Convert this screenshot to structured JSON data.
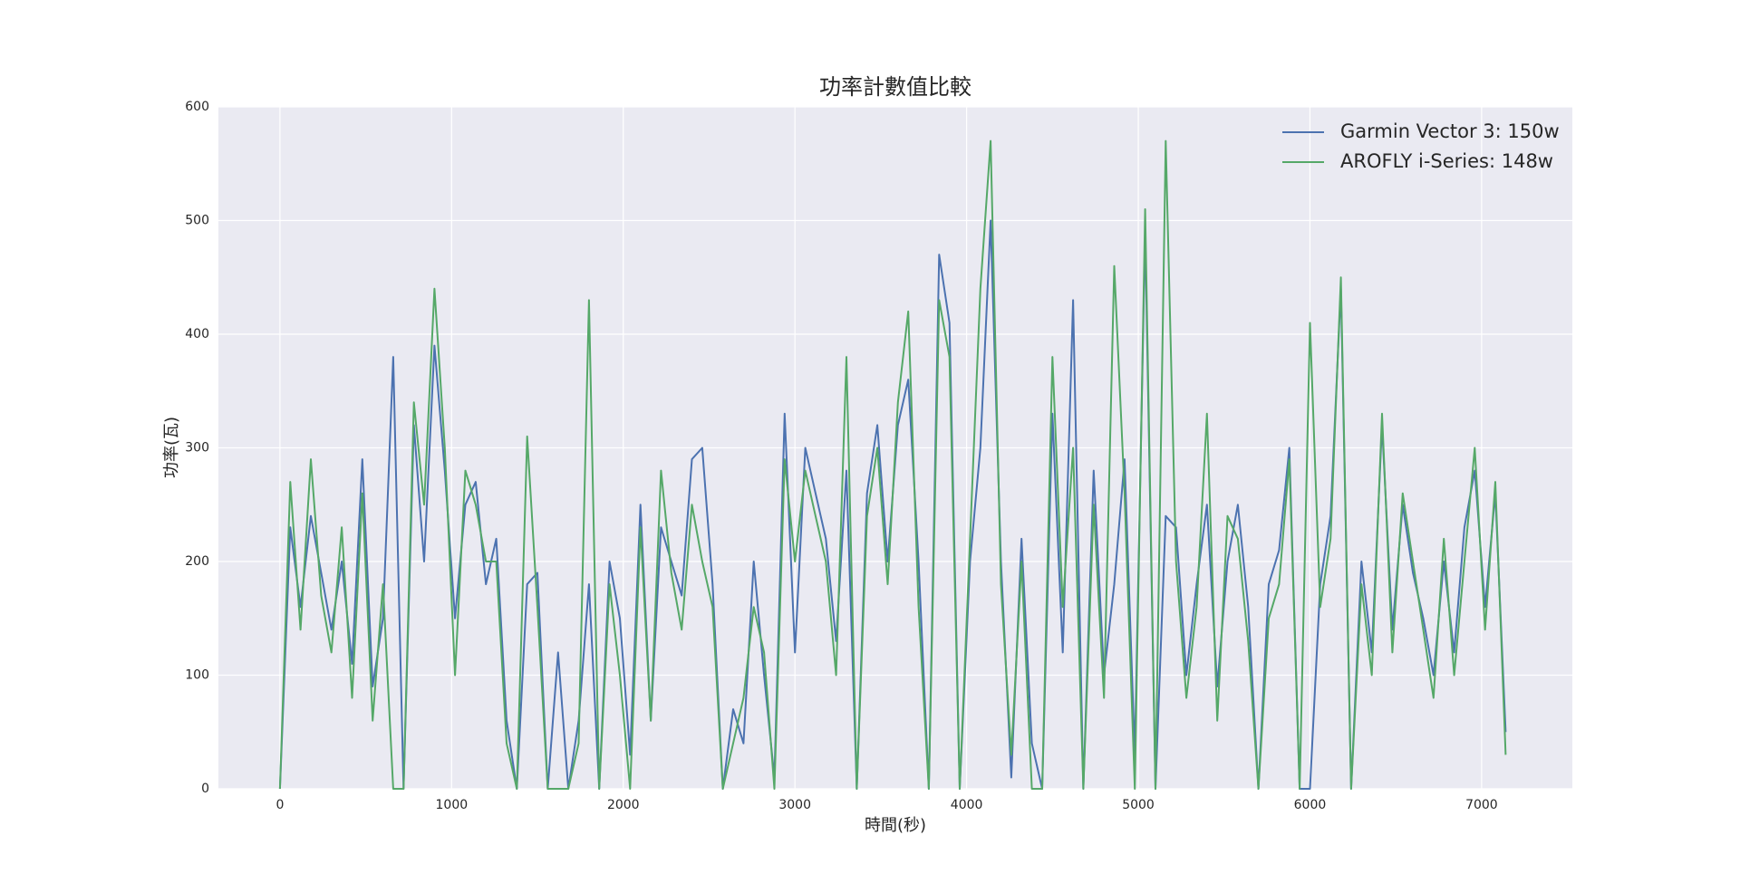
{
  "chart_data": {
    "type": "line",
    "title": "功率計數值比較",
    "x_label": "時間(秒)",
    "y_label": "功率(瓦)",
    "x": [
      0,
      60,
      120,
      180,
      240,
      300,
      360,
      420,
      480,
      540,
      600,
      660,
      720,
      780,
      840,
      900,
      960,
      1020,
      1080,
      1140,
      1200,
      1260,
      1320,
      1380,
      1440,
      1500,
      1560,
      1620,
      1680,
      1740,
      1800,
      1860,
      1920,
      1980,
      2040,
      2100,
      2160,
      2220,
      2280,
      2340,
      2400,
      2460,
      2520,
      2580,
      2640,
      2700,
      2760,
      2820,
      2880,
      2940,
      3000,
      3060,
      3120,
      3180,
      3240,
      3300,
      3360,
      3420,
      3480,
      3540,
      3600,
      3660,
      3720,
      3780,
      3840,
      3900,
      3960,
      4020,
      4080,
      4140,
      4200,
      4260,
      4320,
      4380,
      4440,
      4500,
      4560,
      4620,
      4680,
      4740,
      4800,
      4860,
      4920,
      4980,
      5040,
      5100,
      5160,
      5220,
      5280,
      5340,
      5400,
      5460,
      5520,
      5580,
      5640,
      5700,
      5760,
      5820,
      5880,
      5940,
      6000,
      6060,
      6120,
      6180,
      6240,
      6300,
      6360,
      6420,
      6480,
      6540,
      6600,
      6660,
      6720,
      6780,
      6840,
      6900,
      6960,
      7020,
      7080,
      7140
    ],
    "series": [
      {
        "name": "Garmin Vector 3: 150w",
        "color": "#4c72b0",
        "values": [
          0,
          230,
          160,
          240,
          190,
          140,
          200,
          110,
          290,
          90,
          150,
          380,
          0,
          320,
          200,
          390,
          280,
          150,
          250,
          270,
          180,
          220,
          60,
          0,
          180,
          190,
          0,
          120,
          0,
          60,
          180,
          0,
          200,
          150,
          30,
          250,
          60,
          230,
          200,
          170,
          290,
          300,
          180,
          0,
          70,
          40,
          200,
          100,
          10,
          330,
          120,
          300,
          260,
          220,
          130,
          280,
          0,
          260,
          320,
          200,
          320,
          360,
          200,
          0,
          470,
          410,
          0,
          200,
          300,
          500,
          200,
          10,
          220,
          40,
          0,
          330,
          120,
          430,
          0,
          280,
          100,
          180,
          290,
          30,
          490,
          0,
          240,
          230,
          100,
          180,
          250,
          90,
          200,
          250,
          160,
          0,
          180,
          210,
          300,
          0,
          0,
          180,
          240,
          440,
          0,
          200,
          120,
          320,
          140,
          250,
          190,
          150,
          100,
          200,
          120,
          230,
          280,
          160,
          260,
          50
        ]
      },
      {
        "name": "AROFLY i-Series: 148w",
        "color": "#55a868",
        "values": [
          0,
          270,
          140,
          290,
          170,
          120,
          230,
          80,
          260,
          60,
          180,
          0,
          0,
          340,
          250,
          440,
          300,
          100,
          280,
          250,
          200,
          200,
          40,
          0,
          310,
          160,
          0,
          0,
          0,
          40,
          430,
          0,
          180,
          100,
          0,
          230,
          60,
          280,
          190,
          140,
          250,
          200,
          160,
          0,
          40,
          80,
          160,
          120,
          0,
          290,
          200,
          280,
          240,
          200,
          100,
          380,
          0,
          240,
          300,
          180,
          340,
          420,
          160,
          0,
          430,
          380,
          0,
          220,
          440,
          570,
          180,
          30,
          200,
          0,
          0,
          380,
          160,
          300,
          0,
          250,
          80,
          460,
          260,
          0,
          510,
          0,
          570,
          200,
          80,
          160,
          330,
          60,
          240,
          220,
          130,
          0,
          150,
          180,
          290,
          0,
          410,
          160,
          220,
          450,
          0,
          180,
          100,
          330,
          120,
          260,
          200,
          140,
          80,
          220,
          100,
          200,
          300,
          140,
          270,
          30
        ]
      }
    ],
    "xlim": [
      -358.5,
      7528.5
    ],
    "xticks": [
      0,
      1000,
      2000,
      3000,
      4000,
      5000,
      6000,
      7000
    ],
    "ylim": [
      0,
      600
    ],
    "yticks": [
      0,
      100,
      200,
      300,
      400,
      500,
      600
    ],
    "grid": true,
    "legend": "upper right"
  }
}
